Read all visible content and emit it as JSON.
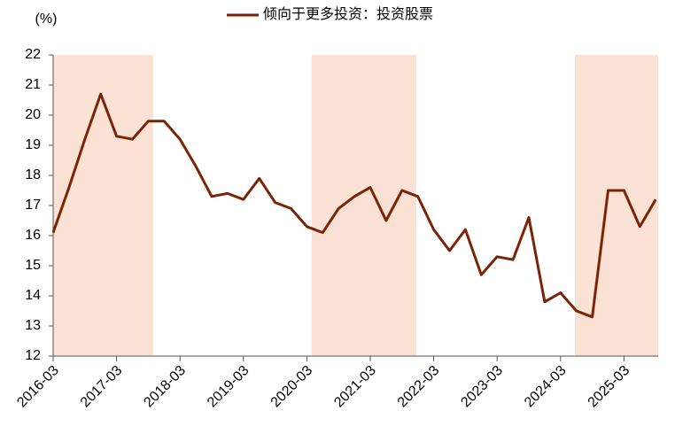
{
  "chart_data": {
    "type": "line",
    "series_name_note": null,
    "y_unit_label": "(%)",
    "categories": [
      "2016-03",
      null,
      null,
      null,
      "2017-03",
      null,
      null,
      null,
      "2018-03",
      null,
      null,
      null,
      "2019-03",
      null,
      null,
      null,
      "2020-03",
      null,
      null,
      null,
      "2021-03",
      null,
      null,
      null,
      "2022-03",
      null,
      null,
      null,
      "2023-03",
      null,
      null,
      null,
      "2024-03",
      null,
      null,
      null,
      "2025-03",
      null,
      null
    ],
    "series": [
      {
        "name": "倾向于更多投资：投资股票",
        "color": "#7b2306",
        "values": [
          16.1,
          17.6,
          19.2,
          20.7,
          19.3,
          19.2,
          19.8,
          19.8,
          19.2,
          18.3,
          17.3,
          17.4,
          17.2,
          17.9,
          17.1,
          16.9,
          16.3,
          16.1,
          16.9,
          17.3,
          17.6,
          16.5,
          17.5,
          17.3,
          16.2,
          15.5,
          16.2,
          14.7,
          15.3,
          15.2,
          16.6,
          13.8,
          14.1,
          13.5,
          13.3,
          17.5,
          17.5,
          16.3,
          17.2
        ]
      }
    ],
    "shaded_periods": [
      [
        0,
        6.3
      ],
      [
        16.3,
        22.9
      ],
      [
        32.9,
        38.2
      ]
    ],
    "shade_color": "#fbe2d5",
    "ylim": [
      12,
      22
    ],
    "yticks": [
      12,
      13,
      14,
      15,
      16,
      17,
      18,
      19,
      20,
      21,
      22
    ],
    "grid": false
  }
}
